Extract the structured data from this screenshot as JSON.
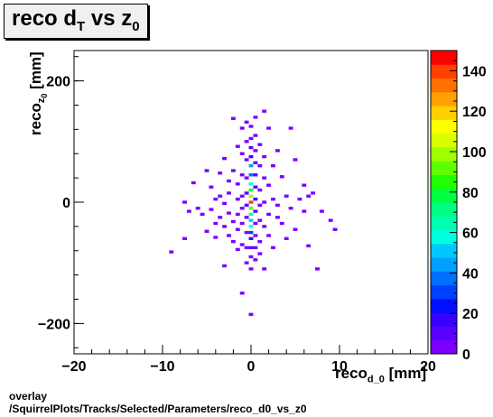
{
  "title": {
    "main": "reco d",
    "sub1": "T",
    "mid": " vs z",
    "sub2": "0"
  },
  "footer": {
    "line1": "overlay",
    "line2": "/SquirrelPlots/Tracks/Selected/Parameters/reco_d0_vs_z0"
  },
  "axes": {
    "xlabel_main": "reco",
    "xlabel_sub": "d_0",
    "xlabel_unit": " [mm]",
    "ylabel_main": "reco",
    "ylabel_sub": "z",
    "ylabel_subsub": "0",
    "ylabel_unit": " [mm]"
  },
  "chart_data": {
    "type": "heatmap",
    "xlim": [
      -20,
      20
    ],
    "ylim": [
      -250,
      250
    ],
    "zlim": [
      0,
      150
    ],
    "xticks": [
      -20,
      -10,
      0,
      10,
      20
    ],
    "yticks": [
      -200,
      0,
      200
    ],
    "zticks": [
      0,
      20,
      40,
      60,
      80,
      100,
      120,
      140
    ],
    "bin_width": {
      "x": 0.5,
      "y": 5
    },
    "bins": [
      [
        -9.0,
        -82,
        1
      ],
      [
        -7.5,
        -60,
        1
      ],
      [
        -7.5,
        0,
        1
      ],
      [
        -7.0,
        -15,
        1
      ],
      [
        -6.5,
        32,
        1
      ],
      [
        -6.0,
        -10,
        1
      ],
      [
        -5.5,
        -20,
        1
      ],
      [
        -5.0,
        52,
        1
      ],
      [
        -5.0,
        -48,
        1
      ],
      [
        -4.5,
        25,
        1
      ],
      [
        -4.5,
        -12,
        1
      ],
      [
        -4.0,
        5,
        1
      ],
      [
        -4.0,
        -35,
        1
      ],
      [
        -4.0,
        -58,
        1
      ],
      [
        -3.5,
        48,
        1
      ],
      [
        -3.5,
        10,
        1
      ],
      [
        -3.5,
        -25,
        1
      ],
      [
        -3.0,
        72,
        1
      ],
      [
        -3.0,
        -2,
        1
      ],
      [
        -3.0,
        -40,
        1
      ],
      [
        -3.0,
        -105,
        1
      ],
      [
        -2.5,
        35,
        1
      ],
      [
        -2.5,
        15,
        1
      ],
      [
        -2.5,
        -18,
        1
      ],
      [
        -2.5,
        -55,
        1
      ],
      [
        -2.0,
        138,
        1
      ],
      [
        -2.0,
        52,
        1
      ],
      [
        -2.0,
        -32,
        1
      ],
      [
        -2.0,
        -65,
        1
      ],
      [
        -1.5,
        92,
        1
      ],
      [
        -1.5,
        30,
        2
      ],
      [
        -1.5,
        5,
        1
      ],
      [
        -1.5,
        -20,
        2
      ],
      [
        -1.5,
        -45,
        1
      ],
      [
        -1.5,
        -78,
        1
      ],
      [
        -1.0,
        122,
        1
      ],
      [
        -1.0,
        80,
        1
      ],
      [
        -1.0,
        45,
        2
      ],
      [
        -1.0,
        10,
        2
      ],
      [
        -1.0,
        -10,
        2
      ],
      [
        -1.0,
        -35,
        1
      ],
      [
        -1.0,
        -70,
        1
      ],
      [
        -1.0,
        -150,
        1
      ],
      [
        -0.5,
        132,
        1
      ],
      [
        -0.5,
        100,
        2
      ],
      [
        -0.5,
        70,
        3
      ],
      [
        -0.5,
        40,
        5
      ],
      [
        -0.5,
        15,
        8
      ],
      [
        -0.5,
        -5,
        10
      ],
      [
        -0.5,
        -25,
        6
      ],
      [
        -0.5,
        -50,
        4
      ],
      [
        -0.5,
        -75,
        2
      ],
      [
        -0.5,
        -100,
        1
      ],
      [
        0.0,
        125,
        2
      ],
      [
        0.0,
        105,
        4
      ],
      [
        0.0,
        90,
        8
      ],
      [
        0.0,
        75,
        20
      ],
      [
        0.0,
        60,
        45
      ],
      [
        0.0,
        45,
        35
      ],
      [
        0.0,
        30,
        60
      ],
      [
        0.0,
        20,
        80
      ],
      [
        0.0,
        10,
        100
      ],
      [
        0.0,
        0,
        140
      ],
      [
        0.0,
        -10,
        90
      ],
      [
        0.0,
        -20,
        65
      ],
      [
        0.0,
        -30,
        50
      ],
      [
        0.0,
        -40,
        55
      ],
      [
        0.0,
        -50,
        30
      ],
      [
        0.0,
        -60,
        15
      ],
      [
        0.0,
        -75,
        8
      ],
      [
        0.0,
        -90,
        3
      ],
      [
        0.0,
        -110,
        1
      ],
      [
        0.0,
        -185,
        1
      ],
      [
        0.5,
        140,
        1
      ],
      [
        0.5,
        110,
        3
      ],
      [
        0.5,
        85,
        6
      ],
      [
        0.5,
        65,
        10
      ],
      [
        0.5,
        45,
        8
      ],
      [
        0.5,
        25,
        12
      ],
      [
        0.5,
        5,
        15
      ],
      [
        0.5,
        -15,
        10
      ],
      [
        0.5,
        -35,
        6
      ],
      [
        0.5,
        -55,
        4
      ],
      [
        0.5,
        -75,
        3
      ],
      [
        0.5,
        -95,
        2
      ],
      [
        1.0,
        95,
        2
      ],
      [
        1.0,
        60,
        2
      ],
      [
        1.0,
        20,
        3
      ],
      [
        1.0,
        -5,
        2
      ],
      [
        1.0,
        -30,
        2
      ],
      [
        1.0,
        -65,
        1
      ],
      [
        1.0,
        -85,
        1
      ],
      [
        1.5,
        150,
        1
      ],
      [
        1.5,
        75,
        1
      ],
      [
        1.5,
        40,
        1
      ],
      [
        1.5,
        0,
        2
      ],
      [
        1.5,
        -40,
        1
      ],
      [
        1.5,
        -110,
        1
      ],
      [
        2.0,
        122,
        1
      ],
      [
        2.0,
        28,
        1
      ],
      [
        2.0,
        -20,
        1
      ],
      [
        2.0,
        -55,
        1
      ],
      [
        2.5,
        60,
        1
      ],
      [
        2.5,
        5,
        1
      ],
      [
        2.5,
        -75,
        1
      ],
      [
        3.0,
        85,
        1
      ],
      [
        3.0,
        -5,
        1
      ],
      [
        3.0,
        -25,
        1
      ],
      [
        3.5,
        42,
        1
      ],
      [
        3.5,
        -35,
        1
      ],
      [
        4.0,
        10,
        1
      ],
      [
        4.0,
        -60,
        1
      ],
      [
        4.5,
        122,
        1
      ],
      [
        4.5,
        -10,
        1
      ],
      [
        5.0,
        70,
        1
      ],
      [
        5.0,
        -45,
        1
      ],
      [
        5.5,
        5,
        1
      ],
      [
        6.0,
        28,
        1
      ],
      [
        6.0,
        -15,
        1
      ],
      [
        6.5,
        10,
        1
      ],
      [
        6.5,
        -72,
        1
      ],
      [
        7.0,
        15,
        1
      ],
      [
        7.5,
        -110,
        1
      ],
      [
        8.0,
        -15,
        1
      ],
      [
        9.0,
        -30,
        1
      ],
      [
        9.5,
        -45,
        1
      ]
    ]
  }
}
